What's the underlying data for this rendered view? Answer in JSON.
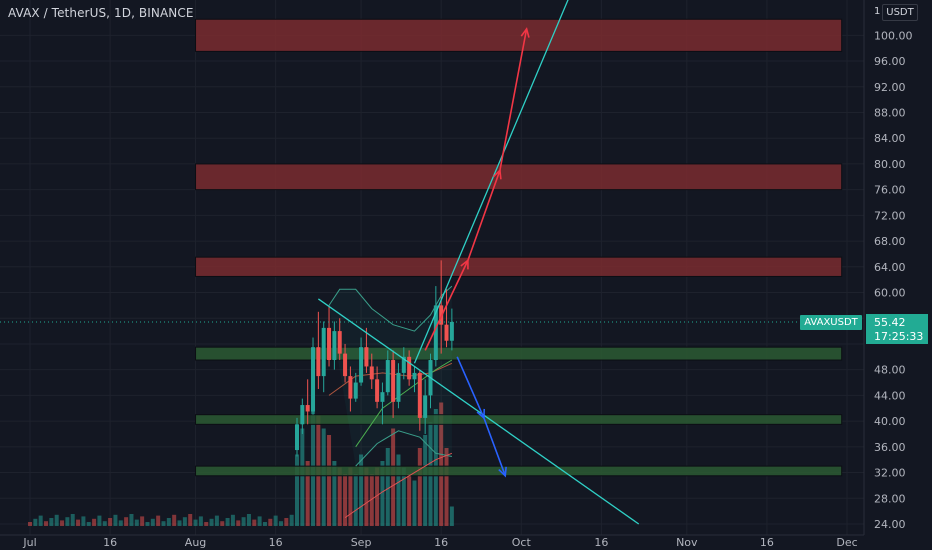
{
  "header": {
    "title": "AVAX / TetherUS, 1D, BINANCE"
  },
  "price_scale": {
    "unit_prefix": "1",
    "unit": "USDT",
    "last_price": "55.42",
    "countdown": "17:25:33",
    "ticker_badge": "AVAXUSDT"
  },
  "colors": {
    "background": "#131722",
    "bull": "#26a69a",
    "bear": "#ef5350",
    "resistance_zone": "#7a2c2f",
    "support_zone": "#2c5a33",
    "trendline": "#2fd0c6",
    "projection_up": "#f23645",
    "projection_down": "#2962ff",
    "price_badge": "#22ab94"
  },
  "chart_data": {
    "type": "candlestick",
    "symbol": "AVAX / TetherUS",
    "interval": "1D",
    "exchange": "BINANCE",
    "x_axis": {
      "type": "date",
      "tick_labels": [
        "Jul",
        "16",
        "Aug",
        "16",
        "Sep",
        "16",
        "Oct",
        "16",
        "Nov",
        "16",
        "Dec"
      ],
      "tick_dates": [
        "2021-07-01",
        "2021-07-16",
        "2021-08-01",
        "2021-08-16",
        "2021-09-01",
        "2021-09-16",
        "2021-10-01",
        "2021-10-16",
        "2021-11-01",
        "2021-11-16",
        "2021-12-01"
      ]
    },
    "y_axis": {
      "ylim": [
        24,
        104
      ],
      "tick_labels": [
        "24.00",
        "28.00",
        "32.00",
        "36.00",
        "40.00",
        "44.00",
        "48.00",
        "52.00",
        "56.00",
        "60.00",
        "64.00",
        "68.00",
        "72.00",
        "76.00",
        "80.00",
        "84.00",
        "88.00",
        "92.00",
        "96.00",
        "100.00"
      ],
      "ticks": [
        24,
        28,
        32,
        36,
        40,
        44,
        48,
        52,
        56,
        60,
        64,
        68,
        72,
        76,
        80,
        84,
        88,
        92,
        96,
        100
      ]
    },
    "last_price": 55.42,
    "candles": [
      {
        "date": "2021-08-20",
        "o": 35.5,
        "h": 40.5,
        "l": 34.5,
        "c": 39.5
      },
      {
        "date": "2021-08-21",
        "o": 39.5,
        "h": 43.5,
        "l": 38.0,
        "c": 42.5
      },
      {
        "date": "2021-08-22",
        "o": 42.5,
        "h": 46.5,
        "l": 39.5,
        "c": 41.5
      },
      {
        "date": "2021-08-23",
        "o": 41.5,
        "h": 53.0,
        "l": 41.0,
        "c": 51.5
      },
      {
        "date": "2021-08-24",
        "o": 51.5,
        "h": 57.0,
        "l": 45.0,
        "c": 47.0
      },
      {
        "date": "2021-08-25",
        "o": 47.0,
        "h": 55.5,
        "l": 44.5,
        "c": 54.5
      },
      {
        "date": "2021-08-26",
        "o": 54.5,
        "h": 58.0,
        "l": 48.5,
        "c": 49.5
      },
      {
        "date": "2021-08-27",
        "o": 49.5,
        "h": 55.5,
        "l": 48.0,
        "c": 54.0
      },
      {
        "date": "2021-08-28",
        "o": 54.0,
        "h": 56.0,
        "l": 49.5,
        "c": 50.5
      },
      {
        "date": "2021-08-29",
        "o": 50.5,
        "h": 52.0,
        "l": 46.0,
        "c": 47.0
      },
      {
        "date": "2021-08-30",
        "o": 47.0,
        "h": 48.5,
        "l": 41.5,
        "c": 43.5
      },
      {
        "date": "2021-08-31",
        "o": 43.5,
        "h": 47.5,
        "l": 43.0,
        "c": 46.0
      },
      {
        "date": "2021-09-01",
        "o": 46.0,
        "h": 53.0,
        "l": 45.5,
        "c": 51.5
      },
      {
        "date": "2021-09-02",
        "o": 51.5,
        "h": 54.5,
        "l": 47.5,
        "c": 48.5
      },
      {
        "date": "2021-09-03",
        "o": 48.5,
        "h": 50.5,
        "l": 45.0,
        "c": 46.5
      },
      {
        "date": "2021-09-04",
        "o": 46.5,
        "h": 48.5,
        "l": 42.0,
        "c": 43.0
      },
      {
        "date": "2021-09-05",
        "o": 43.0,
        "h": 46.0,
        "l": 39.5,
        "c": 44.5
      },
      {
        "date": "2021-09-06",
        "o": 44.5,
        "h": 51.0,
        "l": 44.0,
        "c": 49.5
      },
      {
        "date": "2021-09-07",
        "o": 49.5,
        "h": 51.0,
        "l": 40.5,
        "c": 43.0
      },
      {
        "date": "2021-09-08",
        "o": 43.0,
        "h": 49.0,
        "l": 42.0,
        "c": 47.5
      },
      {
        "date": "2021-09-09",
        "o": 47.5,
        "h": 51.5,
        "l": 46.5,
        "c": 50.0
      },
      {
        "date": "2021-09-10",
        "o": 50.0,
        "h": 51.0,
        "l": 45.5,
        "c": 46.5
      },
      {
        "date": "2021-09-11",
        "o": 46.5,
        "h": 48.5,
        "l": 44.5,
        "c": 47.5
      },
      {
        "date": "2021-09-12",
        "o": 47.5,
        "h": 48.0,
        "l": 38.5,
        "c": 40.5
      },
      {
        "date": "2021-09-13",
        "o": 40.5,
        "h": 46.5,
        "l": 38.0,
        "c": 44.0
      },
      {
        "date": "2021-09-14",
        "o": 44.0,
        "h": 50.5,
        "l": 42.0,
        "c": 49.5
      },
      {
        "date": "2021-09-15",
        "o": 49.5,
        "h": 61.0,
        "l": 48.5,
        "c": 58.0
      },
      {
        "date": "2021-09-16",
        "o": 58.0,
        "h": 65.0,
        "l": 50.5,
        "c": 55.0
      },
      {
        "date": "2021-09-17",
        "o": 55.0,
        "h": 60.5,
        "l": 51.5,
        "c": 52.5
      },
      {
        "date": "2021-09-18",
        "o": 52.5,
        "h": 57.5,
        "l": 51.0,
        "c": 55.42
      }
    ],
    "volume": {
      "baseline_dates": [
        "2021-07-01",
        "2021-08-19"
      ],
      "by_date": [
        {
          "date": "2021-08-20",
          "v": 0.55,
          "up": true
        },
        {
          "date": "2021-08-21",
          "v": 0.75,
          "up": true
        },
        {
          "date": "2021-08-22",
          "v": 0.5,
          "up": false
        },
        {
          "date": "2021-08-23",
          "v": 0.95,
          "up": true
        },
        {
          "date": "2021-08-24",
          "v": 0.85,
          "up": false
        },
        {
          "date": "2021-08-25",
          "v": 0.75,
          "up": true
        },
        {
          "date": "2021-08-26",
          "v": 0.7,
          "up": false
        },
        {
          "date": "2021-08-27",
          "v": 0.5,
          "up": true
        },
        {
          "date": "2021-08-28",
          "v": 0.45,
          "up": false
        },
        {
          "date": "2021-08-29",
          "v": 0.4,
          "up": false
        },
        {
          "date": "2021-08-30",
          "v": 0.45,
          "up": false
        },
        {
          "date": "2021-08-31",
          "v": 0.4,
          "up": true
        },
        {
          "date": "2021-09-01",
          "v": 0.55,
          "up": true
        },
        {
          "date": "2021-09-02",
          "v": 0.45,
          "up": false
        },
        {
          "date": "2021-09-03",
          "v": 0.4,
          "up": false
        },
        {
          "date": "2021-09-04",
          "v": 0.45,
          "up": false
        },
        {
          "date": "2021-09-05",
          "v": 0.5,
          "up": true
        },
        {
          "date": "2021-09-06",
          "v": 0.6,
          "up": true
        },
        {
          "date": "2021-09-07",
          "v": 0.75,
          "up": false
        },
        {
          "date": "2021-09-08",
          "v": 0.55,
          "up": true
        },
        {
          "date": "2021-09-09",
          "v": 0.45,
          "up": true
        },
        {
          "date": "2021-09-10",
          "v": 0.4,
          "up": false
        },
        {
          "date": "2021-09-11",
          "v": 0.35,
          "up": true
        },
        {
          "date": "2021-09-12",
          "v": 0.6,
          "up": false
        },
        {
          "date": "2021-09-13",
          "v": 0.7,
          "up": true
        },
        {
          "date": "2021-09-14",
          "v": 0.8,
          "up": true
        },
        {
          "date": "2021-09-15",
          "v": 0.9,
          "up": true
        },
        {
          "date": "2021-09-16",
          "v": 0.95,
          "up": false
        },
        {
          "date": "2021-09-17",
          "v": 0.6,
          "up": false
        },
        {
          "date": "2021-09-18",
          "v": 0.15,
          "up": true
        }
      ]
    },
    "bollinger": {
      "upper": [
        {
          "date": "2021-08-26",
          "y": 58.0
        },
        {
          "date": "2021-08-28",
          "y": 60.5
        },
        {
          "date": "2021-08-31",
          "y": 60.5
        },
        {
          "date": "2021-09-03",
          "y": 57.5
        },
        {
          "date": "2021-09-07",
          "y": 55.0
        },
        {
          "date": "2021-09-11",
          "y": 54.0
        },
        {
          "date": "2021-09-14",
          "y": 56.5
        },
        {
          "date": "2021-09-16",
          "y": 59.5
        },
        {
          "date": "2021-09-18",
          "y": 61.0
        }
      ],
      "middle": [
        {
          "date": "2021-08-26",
          "y": 44.0
        },
        {
          "date": "2021-08-31",
          "y": 47.0
        },
        {
          "date": "2021-09-05",
          "y": 47.5
        },
        {
          "date": "2021-09-10",
          "y": 47.0
        },
        {
          "date": "2021-09-14",
          "y": 47.5
        },
        {
          "date": "2021-09-18",
          "y": 49.0
        }
      ],
      "lower": [
        {
          "date": "2021-08-31",
          "y": 33.0
        },
        {
          "date": "2021-09-04",
          "y": 36.5
        },
        {
          "date": "2021-09-08",
          "y": 38.5
        },
        {
          "date": "2021-09-12",
          "y": 37.5
        },
        {
          "date": "2021-09-15",
          "y": 35.0
        },
        {
          "date": "2021-09-18",
          "y": 34.5
        }
      ]
    },
    "moving_averages": [
      [
        {
          "date": "2021-08-31",
          "y": 36.0
        },
        {
          "date": "2021-09-05",
          "y": 42.0
        },
        {
          "date": "2021-09-10",
          "y": 45.0
        },
        {
          "date": "2021-09-15",
          "y": 48.0
        },
        {
          "date": "2021-09-18",
          "y": 49.5
        }
      ],
      [
        {
          "date": "2021-08-29",
          "y": 25.0
        },
        {
          "date": "2021-09-05",
          "y": 29.0
        },
        {
          "date": "2021-09-10",
          "y": 31.5
        },
        {
          "date": "2021-09-15",
          "y": 34.0
        },
        {
          "date": "2021-09-18",
          "y": 35.0
        }
      ]
    ],
    "zones": [
      {
        "type": "resistance",
        "from": "2021-08-01",
        "to": "2021-11-30",
        "low": 97.5,
        "high": 102.5
      },
      {
        "type": "resistance",
        "from": "2021-08-01",
        "to": "2021-11-30",
        "low": 76.0,
        "high": 80.0
      },
      {
        "type": "resistance",
        "from": "2021-08-01",
        "to": "2021-11-30",
        "low": 62.5,
        "high": 65.5
      },
      {
        "type": "support",
        "from": "2021-08-01",
        "to": "2021-11-30",
        "low": 49.5,
        "high": 51.5
      },
      {
        "type": "support",
        "from": "2021-08-01",
        "to": "2021-11-30",
        "low": 39.5,
        "high": 41.0
      },
      {
        "type": "support",
        "from": "2021-08-01",
        "to": "2021-11-30",
        "low": 31.5,
        "high": 33.0
      }
    ],
    "trendlines": [
      {
        "from": {
          "date": "2021-09-11",
          "y": 49.0
        },
        "to": {
          "date": "2021-10-10",
          "y": 106.0
        }
      },
      {
        "from": {
          "date": "2021-08-24",
          "y": 59.0
        },
        "to": {
          "date": "2021-10-23",
          "y": 24.0
        }
      }
    ],
    "projection_up": [
      {
        "date": "2021-09-13",
        "y": 51.0
      },
      {
        "date": "2021-09-21",
        "y": 65.0
      },
      {
        "date": "2021-09-27",
        "y": 79.0
      },
      {
        "date": "2021-10-02",
        "y": 101.0
      }
    ],
    "projection_down": [
      {
        "date": "2021-09-19",
        "y": 50.0
      },
      {
        "date": "2021-09-24",
        "y": 40.5
      },
      {
        "date": "2021-09-28",
        "y": 31.5
      }
    ]
  }
}
